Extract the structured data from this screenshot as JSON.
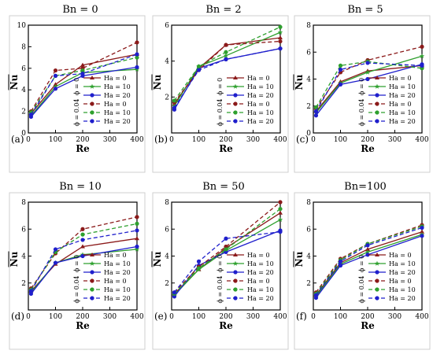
{
  "figure": {
    "legend_group_labels": [
      "ϕ = 0",
      "ϕ = 0.04"
    ],
    "legend_entries": [
      "Ha = 0",
      "Ha = 10",
      "Ha = 20",
      "Ha = 0",
      "Ha = 10",
      "Ha = 20"
    ],
    "colors": {
      "Ha = 0": "#8b1a1a",
      "Ha = 10": "#2ea02e",
      "Ha = 20": "#1f1fcc"
    }
  },
  "chart_data": [
    {
      "type": "line",
      "panel_label": "(a)",
      "title": "Bn = 0",
      "xlabel": "Re",
      "ylabel": "Nu",
      "xlim": [
        0,
        400
      ],
      "ylim": [
        0,
        10
      ],
      "xticks": [
        0,
        100,
        200,
        300,
        400
      ],
      "yticks": [
        0,
        2,
        4,
        6,
        8,
        10
      ],
      "x": [
        10,
        100,
        200,
        400
      ],
      "series": [
        {
          "name": "Ha = 0",
          "phi": "0",
          "dashed": false,
          "values": [
            1.8,
            4.5,
            6.3,
            7.3
          ]
        },
        {
          "name": "Ha = 10",
          "phi": "0",
          "dashed": false,
          "values": [
            1.6,
            4.3,
            5.6,
            5.9
          ]
        },
        {
          "name": "Ha = 20",
          "phi": "0",
          "dashed": false,
          "values": [
            1.5,
            4.1,
            5.3,
            6.1
          ]
        },
        {
          "name": "Ha = 0",
          "phi": "0.04",
          "dashed": true,
          "values": [
            2.0,
            5.8,
            6.0,
            8.4
          ]
        },
        {
          "name": "Ha = 10",
          "phi": "0.04",
          "dashed": true,
          "values": [
            1.9,
            5.3,
            5.8,
            7.0
          ]
        },
        {
          "name": "Ha = 20",
          "phi": "0.04",
          "dashed": true,
          "values": [
            1.7,
            5.3,
            5.5,
            7.3
          ]
        }
      ]
    },
    {
      "type": "line",
      "panel_label": "(b)",
      "title": "Bn = 2",
      "xlabel": "Re",
      "ylabel": "Nu",
      "xlim": [
        0,
        400
      ],
      "ylim": [
        0,
        6
      ],
      "xticks": [
        0,
        100,
        200,
        300,
        400
      ],
      "yticks": [
        2,
        4,
        6
      ],
      "x": [
        10,
        100,
        200,
        400
      ],
      "series": [
        {
          "name": "Ha = 0",
          "phi": "0",
          "dashed": false,
          "values": [
            1.6,
            3.6,
            4.9,
            5.3
          ]
        },
        {
          "name": "Ha = 10",
          "phi": "0",
          "dashed": false,
          "values": [
            1.5,
            3.7,
            4.3,
            5.6
          ]
        },
        {
          "name": "Ha = 20",
          "phi": "0",
          "dashed": false,
          "values": [
            1.3,
            3.6,
            4.1,
            4.7
          ]
        },
        {
          "name": "Ha = 0",
          "phi": "0.04",
          "dashed": true,
          "values": [
            1.7,
            3.5,
            4.9,
            5.1
          ]
        },
        {
          "name": "Ha = 10",
          "phi": "0.04",
          "dashed": true,
          "values": [
            1.8,
            3.7,
            4.5,
            5.9
          ]
        },
        {
          "name": "Ha = 20",
          "phi": "0.04",
          "dashed": true,
          "values": [
            1.4,
            3.5,
            4.1,
            4.7
          ]
        }
      ]
    },
    {
      "type": "line",
      "panel_label": "(c)",
      "title": "Bn = 5",
      "xlabel": "Re",
      "ylabel": "Nu",
      "xlim": [
        0,
        400
      ],
      "ylim": [
        0,
        8
      ],
      "xticks": [
        0,
        100,
        200,
        300,
        400
      ],
      "yticks": [
        0,
        2,
        4,
        6,
        8
      ],
      "x": [
        10,
        100,
        200,
        400
      ],
      "series": [
        {
          "name": "Ha = 0",
          "phi": "0",
          "dashed": false,
          "values": [
            1.6,
            3.8,
            4.6,
            5.0
          ]
        },
        {
          "name": "Ha = 10",
          "phi": "0",
          "dashed": false,
          "values": [
            1.5,
            3.7,
            4.5,
            5.7
          ]
        },
        {
          "name": "Ha = 20",
          "phi": "0",
          "dashed": false,
          "values": [
            1.3,
            3.6,
            4.0,
            5.1
          ]
        },
        {
          "name": "Ha = 0",
          "phi": "0.04",
          "dashed": true,
          "values": [
            1.8,
            4.5,
            5.4,
            6.4
          ]
        },
        {
          "name": "Ha = 10",
          "phi": "0.04",
          "dashed": true,
          "values": [
            1.9,
            5.0,
            5.3,
            4.8
          ]
        },
        {
          "name": "Ha = 20",
          "phi": "0.04",
          "dashed": true,
          "values": [
            1.6,
            4.7,
            5.2,
            5.0
          ]
        }
      ]
    },
    {
      "type": "line",
      "panel_label": "(d)",
      "title": "Bn = 10",
      "xlabel": "Re",
      "ylabel": "Nu",
      "xlim": [
        0,
        400
      ],
      "ylim": [
        0,
        8
      ],
      "xticks": [
        0,
        100,
        200,
        300,
        400
      ],
      "yticks": [
        2,
        4,
        6,
        8
      ],
      "x": [
        10,
        100,
        200,
        400
      ],
      "series": [
        {
          "name": "Ha = 0",
          "phi": "0",
          "dashed": false,
          "values": [
            1.4,
            3.4,
            4.7,
            5.3
          ]
        },
        {
          "name": "Ha = 10",
          "phi": "0",
          "dashed": false,
          "values": [
            1.3,
            3.5,
            4.1,
            4.5
          ]
        },
        {
          "name": "Ha = 20",
          "phi": "0",
          "dashed": false,
          "values": [
            1.2,
            3.5,
            4.0,
            4.7
          ]
        },
        {
          "name": "Ha = 0",
          "phi": "0.04",
          "dashed": true,
          "values": [
            1.6,
            4.2,
            6.0,
            6.9
          ]
        },
        {
          "name": "Ha = 10",
          "phi": "0.04",
          "dashed": true,
          "values": [
            1.5,
            4.3,
            5.6,
            6.4
          ]
        },
        {
          "name": "Ha = 20",
          "phi": "0.04",
          "dashed": true,
          "values": [
            1.4,
            4.5,
            5.2,
            5.9
          ]
        }
      ]
    },
    {
      "type": "line",
      "panel_label": "(e)",
      "title": "Bn = 50",
      "xlabel": "Re",
      "ylabel": "Nu",
      "xlim": [
        0,
        400
      ],
      "ylim": [
        0,
        8
      ],
      "xticks": [
        0,
        100,
        200,
        300,
        400
      ],
      "yticks": [
        2,
        4,
        6,
        8
      ],
      "x": [
        10,
        100,
        200,
        400
      ],
      "series": [
        {
          "name": "Ha = 0",
          "phi": "0",
          "dashed": false,
          "values": [
            1.2,
            3.0,
            4.6,
            7.2
          ]
        },
        {
          "name": "Ha = 10",
          "phi": "0",
          "dashed": false,
          "values": [
            1.1,
            3.0,
            4.4,
            6.7
          ]
        },
        {
          "name": "Ha = 20",
          "phi": "0",
          "dashed": false,
          "values": [
            1.0,
            3.3,
            4.3,
            5.9
          ]
        },
        {
          "name": "Ha = 0",
          "phi": "0.04",
          "dashed": true,
          "values": [
            1.3,
            3.2,
            4.7,
            8.0
          ]
        },
        {
          "name": "Ha = 10",
          "phi": "0.04",
          "dashed": true,
          "values": [
            1.2,
            3.1,
            4.5,
            7.5
          ]
        },
        {
          "name": "Ha = 20",
          "phi": "0.04",
          "dashed": true,
          "values": [
            1.3,
            3.6,
            5.3,
            5.8
          ]
        }
      ]
    },
    {
      "type": "line",
      "panel_label": "(f)",
      "title": "Bn=100",
      "xlabel": "Re",
      "ylabel": "Nu",
      "xlim": [
        0,
        400
      ],
      "ylim": [
        0,
        8
      ],
      "xticks": [
        0,
        100,
        200,
        300,
        400
      ],
      "yticks": [
        2,
        4,
        6,
        8
      ],
      "x": [
        10,
        100,
        200,
        400
      ],
      "series": [
        {
          "name": "Ha = 0",
          "phi": "0",
          "dashed": false,
          "values": [
            1.1,
            3.5,
            4.5,
            5.8
          ]
        },
        {
          "name": "Ha = 10",
          "phi": "0",
          "dashed": false,
          "values": [
            1.0,
            3.4,
            4.3,
            5.6
          ]
        },
        {
          "name": "Ha = 20",
          "phi": "0",
          "dashed": false,
          "values": [
            0.9,
            3.3,
            4.1,
            5.5
          ]
        },
        {
          "name": "Ha = 0",
          "phi": "0.04",
          "dashed": true,
          "values": [
            1.3,
            3.8,
            4.9,
            6.3
          ]
        },
        {
          "name": "Ha = 10",
          "phi": "0.04",
          "dashed": true,
          "values": [
            1.2,
            3.7,
            4.9,
            6.2
          ]
        },
        {
          "name": "Ha = 20",
          "phi": "0.04",
          "dashed": true,
          "values": [
            1.1,
            3.6,
            4.8,
            6.1
          ]
        }
      ]
    }
  ]
}
